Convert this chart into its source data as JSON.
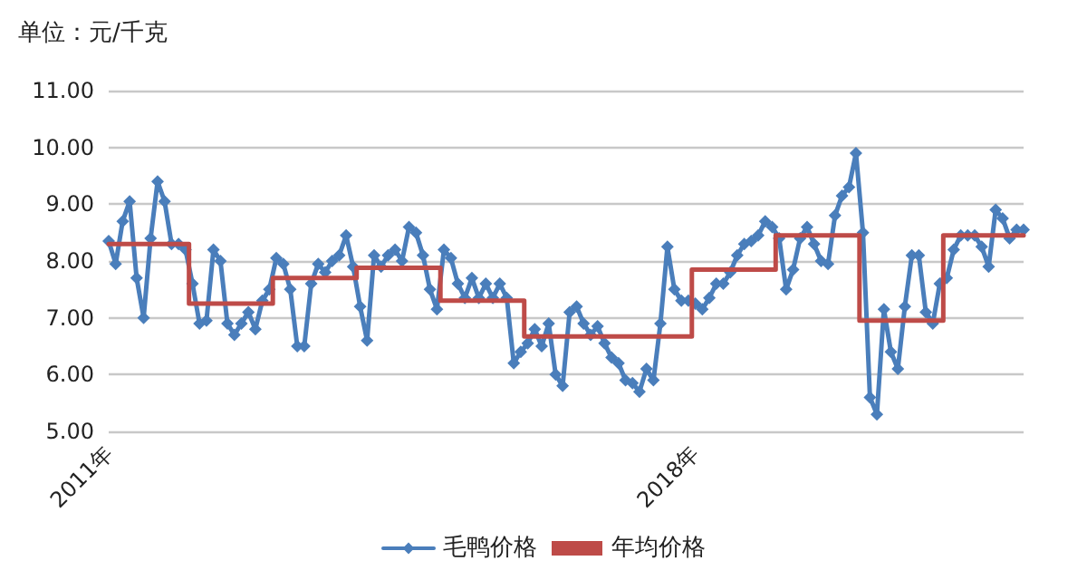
{
  "chart_data": {
    "type": "line",
    "ylabel": "单位：元/千克",
    "categories": [
      "2011年",
      null,
      null,
      null,
      null,
      null,
      null,
      null,
      null,
      null,
      null,
      null,
      null,
      null,
      null,
      null,
      null,
      null,
      null,
      null,
      null,
      null,
      null,
      null,
      null,
      null,
      null,
      null,
      null,
      null,
      null,
      null,
      null,
      null,
      null,
      null,
      null,
      null,
      null,
      null,
      null,
      null,
      null,
      null,
      null,
      null,
      null,
      null,
      null,
      null,
      null,
      null,
      null,
      null,
      null,
      null,
      null,
      null,
      null,
      null,
      null,
      null,
      null,
      null,
      null,
      null,
      null,
      null,
      null,
      null,
      null,
      null,
      null,
      null,
      null,
      null,
      null,
      null,
      null,
      null,
      null,
      null,
      null,
      null,
      "2018年",
      null,
      null,
      null,
      null,
      null,
      null,
      null,
      null,
      null,
      null,
      null,
      null,
      null,
      null,
      null,
      null,
      null,
      null,
      null,
      null,
      null,
      null,
      null,
      null,
      null,
      null,
      null,
      null,
      null,
      null,
      null,
      null,
      null,
      null,
      null,
      null,
      null,
      null,
      null,
      null,
      null,
      null,
      null,
      null,
      null,
      null,
      null
    ],
    "series": [
      {
        "name": "毛鸭价格",
        "color": "#4a7ebb",
        "marker": "diamond",
        "values": [
          8.35,
          7.95,
          8.7,
          9.05,
          7.7,
          7.0,
          8.4,
          9.4,
          9.05,
          8.3,
          8.3,
          8.2,
          7.6,
          6.9,
          6.95,
          8.2,
          8.0,
          6.9,
          6.7,
          6.9,
          7.1,
          6.8,
          7.3,
          7.5,
          8.05,
          7.95,
          7.5,
          6.5,
          6.5,
          7.6,
          7.95,
          7.8,
          8.0,
          8.1,
          8.45,
          7.9,
          7.2,
          6.6,
          8.1,
          7.9,
          8.1,
          8.2,
          8.0,
          8.6,
          8.5,
          8.1,
          7.5,
          7.15,
          8.2,
          8.05,
          7.6,
          7.35,
          7.7,
          7.35,
          7.6,
          7.35,
          7.6,
          7.35,
          6.2,
          6.4,
          6.55,
          6.8,
          6.5,
          6.9,
          6.0,
          5.8,
          7.1,
          7.2,
          6.9,
          6.7,
          6.85,
          6.55,
          6.3,
          6.2,
          5.9,
          5.85,
          5.7,
          6.1,
          5.9,
          6.9,
          8.25,
          7.5,
          7.3,
          7.3,
          7.25,
          7.15,
          7.35,
          7.6,
          7.6,
          7.8,
          8.1,
          8.3,
          8.35,
          8.45,
          8.7,
          8.6,
          8.4,
          7.5,
          7.85,
          8.4,
          8.6,
          8.3,
          8.0,
          7.95,
          8.8,
          9.15,
          9.3,
          9.9,
          8.5,
          5.6,
          5.3,
          7.15,
          6.4,
          6.1,
          7.2,
          8.1,
          8.1,
          7.1,
          6.9,
          7.6,
          7.7,
          8.2,
          8.45,
          8.45,
          8.45,
          8.25,
          7.9,
          8.9,
          8.75,
          8.4,
          8.55,
          8.55
        ]
      },
      {
        "name": "年均价格",
        "color": "#be4b48",
        "type": "step",
        "marker": "none",
        "values": [
          8.3,
          8.3,
          8.3,
          8.3,
          8.3,
          8.3,
          8.3,
          8.3,
          8.3,
          8.3,
          8.3,
          8.3,
          7.25,
          7.25,
          7.25,
          7.25,
          7.25,
          7.25,
          7.25,
          7.25,
          7.25,
          7.25,
          7.25,
          7.25,
          7.7,
          7.7,
          7.7,
          7.7,
          7.7,
          7.7,
          7.7,
          7.7,
          7.7,
          7.7,
          7.7,
          7.7,
          7.88,
          7.88,
          7.88,
          7.88,
          7.88,
          7.88,
          7.88,
          7.88,
          7.88,
          7.88,
          7.88,
          7.88,
          7.3,
          7.3,
          7.3,
          7.3,
          7.3,
          7.3,
          7.3,
          7.3,
          7.3,
          7.3,
          7.3,
          7.3,
          6.67,
          6.67,
          6.67,
          6.67,
          6.67,
          6.67,
          6.67,
          6.67,
          6.67,
          6.67,
          6.67,
          6.67,
          6.67,
          6.67,
          6.67,
          6.67,
          6.67,
          6.67,
          6.67,
          6.67,
          6.67,
          6.67,
          6.67,
          6.67,
          7.85,
          7.85,
          7.85,
          7.85,
          7.85,
          7.85,
          7.85,
          7.85,
          7.85,
          7.85,
          7.85,
          7.85,
          8.45,
          8.45,
          8.45,
          8.45,
          8.45,
          8.45,
          8.45,
          8.45,
          8.45,
          8.45,
          8.45,
          8.45,
          6.95,
          6.95,
          6.95,
          6.95,
          6.95,
          6.95,
          6.95,
          6.95,
          6.95,
          6.95,
          6.95,
          6.95,
          8.45,
          8.45,
          8.45,
          8.45,
          8.45,
          8.45,
          8.45,
          8.45,
          8.45,
          8.45,
          8.45,
          8.45
        ]
      }
    ],
    "ylim": [
      5,
      11
    ],
    "yticks": [
      {
        "value": 5,
        "label": "5.00"
      },
      {
        "value": 6,
        "label": "6.00"
      },
      {
        "value": 7,
        "label": "7.00"
      },
      {
        "value": 8,
        "label": "8.00"
      },
      {
        "value": 9,
        "label": "9.00"
      },
      {
        "value": 10,
        "label": "10.00"
      },
      {
        "value": 11,
        "label": "11.00"
      }
    ],
    "grid": "y",
    "legend": "bottom",
    "line_style": "solid"
  }
}
